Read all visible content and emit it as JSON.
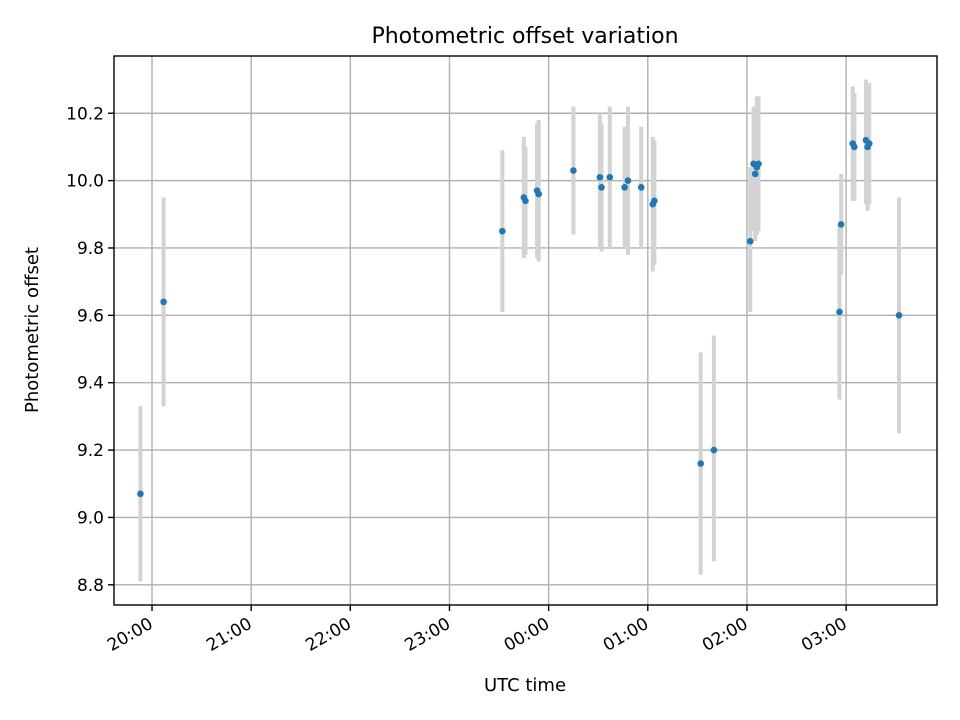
{
  "chart_data": {
    "type": "scatter",
    "title": "Photometric offset variation",
    "xlabel": "UTC time",
    "ylabel": "Photometric offset",
    "x_unit": "UTC time (HH:MM)",
    "xlim": [
      "19:37",
      "03:55"
    ],
    "ylim": [
      8.74,
      10.37
    ],
    "x_ticks": [
      "20:00",
      "21:00",
      "22:00",
      "23:00",
      "00:00",
      "01:00",
      "02:00",
      "03:00"
    ],
    "y_ticks": [
      "8.8",
      "9.0",
      "9.2",
      "9.4",
      "9.6",
      "9.8",
      "10.0",
      "10.2"
    ],
    "grid": true,
    "legend": "none",
    "point_color": "#1f77b4",
    "errorbar_color": "#d3d3d3",
    "points": [
      {
        "time": "19:53",
        "y": 9.07,
        "yerr_low": 8.81,
        "yerr_high": 9.33
      },
      {
        "time": "20:07",
        "y": 9.64,
        "yerr_low": 9.33,
        "yerr_high": 9.95
      },
      {
        "time": "23:32",
        "y": 9.85,
        "yerr_low": 9.61,
        "yerr_high": 10.09
      },
      {
        "time": "23:45",
        "y": 9.95,
        "yerr_low": 9.77,
        "yerr_high": 10.13
      },
      {
        "time": "23:46",
        "y": 9.94,
        "yerr_low": 9.78,
        "yerr_high": 10.1
      },
      {
        "time": "23:53",
        "y": 9.97,
        "yerr_low": 9.77,
        "yerr_high": 10.17
      },
      {
        "time": "23:54",
        "y": 9.96,
        "yerr_low": 9.76,
        "yerr_high": 10.18
      },
      {
        "time": "00:15",
        "y": 10.03,
        "yerr_low": 9.84,
        "yerr_high": 10.22
      },
      {
        "time": "00:31",
        "y": 10.01,
        "yerr_low": 9.8,
        "yerr_high": 10.2
      },
      {
        "time": "00:32",
        "y": 9.98,
        "yerr_low": 9.79,
        "yerr_high": 10.17
      },
      {
        "time": "00:37",
        "y": 10.01,
        "yerr_low": 9.8,
        "yerr_high": 10.22
      },
      {
        "time": "00:46",
        "y": 9.98,
        "yerr_low": 9.8,
        "yerr_high": 10.16
      },
      {
        "time": "00:48",
        "y": 10.0,
        "yerr_low": 9.78,
        "yerr_high": 10.22
      },
      {
        "time": "00:56",
        "y": 9.98,
        "yerr_low": 9.8,
        "yerr_high": 10.16
      },
      {
        "time": "01:03",
        "y": 9.93,
        "yerr_low": 9.73,
        "yerr_high": 10.13
      },
      {
        "time": "01:04",
        "y": 9.94,
        "yerr_low": 9.75,
        "yerr_high": 10.12
      },
      {
        "time": "01:32",
        "y": 9.16,
        "yerr_low": 8.83,
        "yerr_high": 9.49
      },
      {
        "time": "01:40",
        "y": 9.2,
        "yerr_low": 8.87,
        "yerr_high": 9.54
      },
      {
        "time": "02:02",
        "y": 9.82,
        "yerr_low": 9.61,
        "yerr_high": 10.04
      },
      {
        "time": "02:04",
        "y": 10.05,
        "yerr_low": 9.85,
        "yerr_high": 10.22
      },
      {
        "time": "02:05",
        "y": 10.02,
        "yerr_low": 9.82,
        "yerr_high": 10.22
      },
      {
        "time": "02:06",
        "y": 10.04,
        "yerr_low": 9.84,
        "yerr_high": 10.25
      },
      {
        "time": "02:07",
        "y": 10.05,
        "yerr_low": 9.85,
        "yerr_high": 10.25
      },
      {
        "time": "02:56",
        "y": 9.61,
        "yerr_low": 9.35,
        "yerr_high": 9.87
      },
      {
        "time": "02:57",
        "y": 9.87,
        "yerr_low": 9.72,
        "yerr_high": 10.02
      },
      {
        "time": "03:04",
        "y": 10.11,
        "yerr_low": 9.94,
        "yerr_high": 10.28
      },
      {
        "time": "03:05",
        "y": 10.1,
        "yerr_low": 9.94,
        "yerr_high": 10.26
      },
      {
        "time": "03:12",
        "y": 10.12,
        "yerr_low": 9.93,
        "yerr_high": 10.3
      },
      {
        "time": "03:13",
        "y": 10.1,
        "yerr_low": 9.91,
        "yerr_high": 10.29
      },
      {
        "time": "03:14",
        "y": 10.11,
        "yerr_low": 9.93,
        "yerr_high": 10.29
      },
      {
        "time": "03:32",
        "y": 9.6,
        "yerr_low": 9.25,
        "yerr_high": 9.95
      }
    ]
  }
}
